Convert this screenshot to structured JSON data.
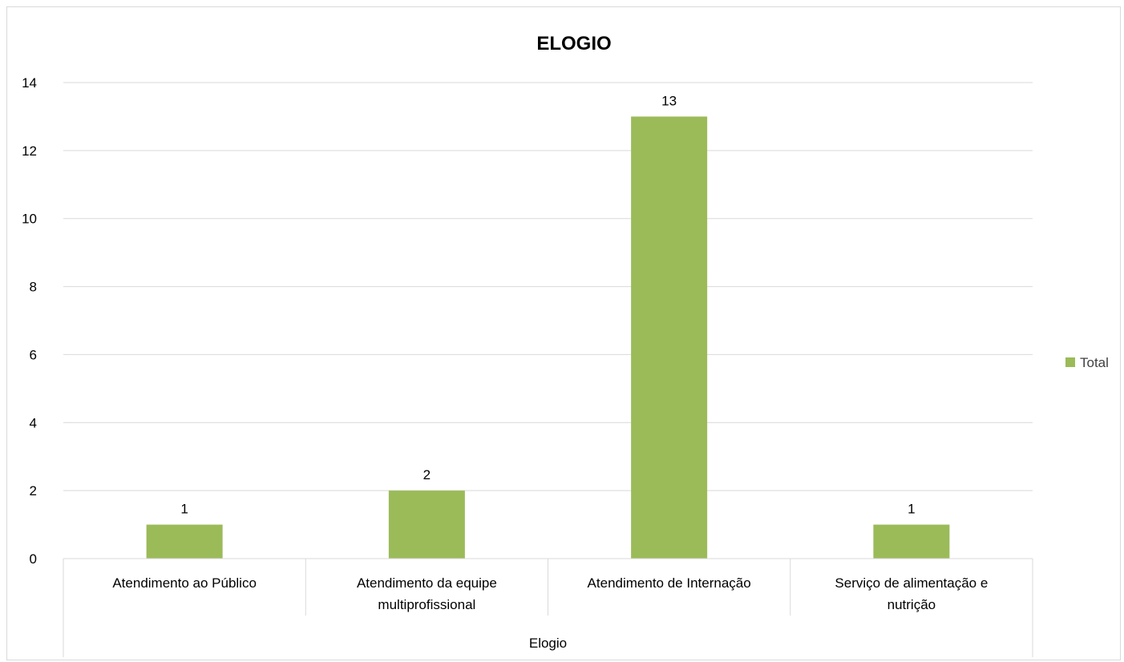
{
  "chart_data": {
    "type": "bar",
    "title": "ELOGIO",
    "categories": [
      [
        "Atendimento ao Público"
      ],
      [
        "Atendimento da equipe",
        "multiprofissional"
      ],
      [
        "Atendimento de Internação"
      ],
      [
        "Serviço de alimentação e",
        "nutrição"
      ]
    ],
    "group_label": "Elogio",
    "series": [
      {
        "name": "Total",
        "values": [
          1,
          2,
          13,
          1
        ],
        "color": "#9BBB59"
      }
    ],
    "data_labels": [
      "1",
      "2",
      "13",
      "1"
    ],
    "y_ticks": [
      "0",
      "2",
      "4",
      "6",
      "8",
      "10",
      "12",
      "14"
    ],
    "ylim": [
      0,
      14
    ],
    "grid": true,
    "legend_position": "right"
  }
}
